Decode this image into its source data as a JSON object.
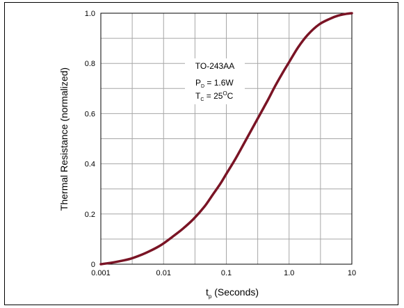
{
  "chart_data": {
    "type": "line",
    "xlabel_main": "t",
    "xlabel_sub": "p",
    "xlabel_rest": " (Seconds)",
    "ylabel": "Thermal Resistance (normalized)",
    "x_scale": "log",
    "xlim": [
      0.001,
      10
    ],
    "ylim": [
      0,
      1.0
    ],
    "x_ticks": [
      0.001,
      0.01,
      0.1,
      1.0,
      10
    ],
    "x_tick_labels": [
      "0.001",
      "0.01",
      "0.1",
      "1.0",
      "10"
    ],
    "y_ticks": [
      0,
      0.2,
      0.4,
      0.6,
      0.8,
      1.0
    ],
    "y_tick_labels": [
      "0",
      "0.2",
      "0.4",
      "0.6",
      "0.8",
      "1.0"
    ],
    "grid": true,
    "line_color": "#7a1425",
    "series": [
      {
        "x": [
          0.001,
          0.0014,
          0.002,
          0.003,
          0.0045,
          0.006,
          0.008,
          0.01,
          0.014,
          0.02,
          0.03,
          0.045,
          0.06,
          0.08,
          0.1,
          0.14,
          0.2,
          0.3,
          0.45,
          0.6,
          0.8,
          1.0,
          1.4,
          2.0,
          3.0,
          4.5,
          6.0,
          8.0,
          10
        ],
        "y": [
          0.0,
          0.005,
          0.012,
          0.022,
          0.038,
          0.052,
          0.068,
          0.083,
          0.11,
          0.14,
          0.18,
          0.23,
          0.275,
          0.32,
          0.36,
          0.42,
          0.49,
          0.57,
          0.65,
          0.71,
          0.765,
          0.805,
          0.865,
          0.915,
          0.955,
          0.978,
          0.99,
          0.997,
          1.0
        ]
      }
    ],
    "annotation": {
      "line1": "TO-243AA",
      "line2_main": "P",
      "line2_sub": "D",
      "line2_rest": " = 1.6W",
      "line3_main": "T",
      "line3_sub": "C",
      "line3_value": " = 25",
      "line3_sup": "O",
      "line3_unit": "C"
    }
  }
}
